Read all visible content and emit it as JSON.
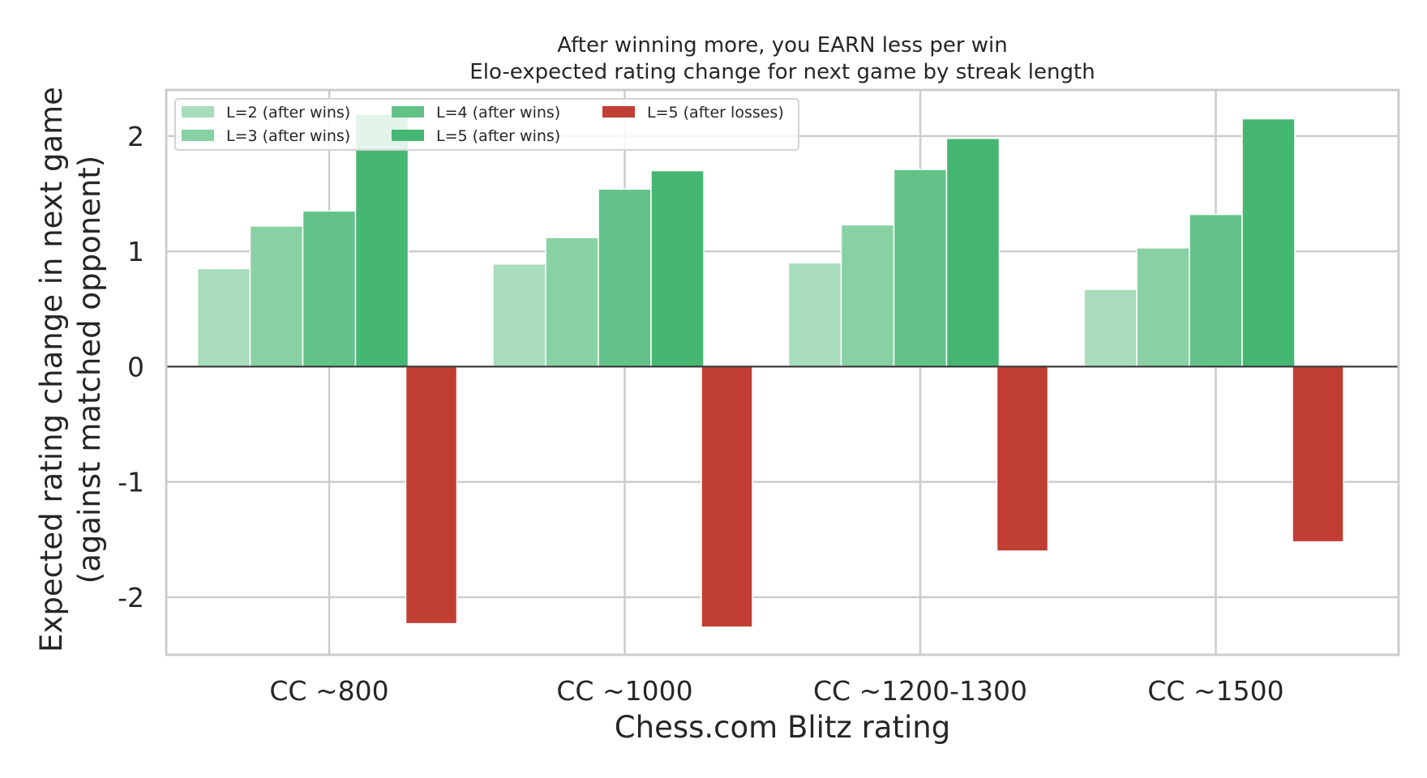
{
  "chart_data": {
    "type": "bar",
    "title": "After winning more, you EARN less per win",
    "subtitle": "Elo-expected rating change for next game by streak length",
    "xlabel": "Chess.com Blitz rating",
    "ylabel_line1": "Expected rating change in next game",
    "ylabel_line2": "(against matched opponent)",
    "categories": [
      "CC ~800",
      "CC ~1000",
      "CC ~1200-1300",
      "CC ~1500"
    ],
    "ylim": [
      -2.5,
      2.4
    ],
    "yticks": [
      -2,
      -1,
      0,
      1,
      2
    ],
    "ytick_labels": [
      "-2",
      "-1",
      "0",
      "1",
      "2"
    ],
    "grid": true,
    "legend_position": "top-left",
    "series": [
      {
        "name": "L=2 (after wins)",
        "color": "#a8dcbc",
        "values": [
          0.85,
          0.89,
          0.9,
          0.67
        ]
      },
      {
        "name": "L=3 (after wins)",
        "color": "#88d1a4",
        "values": [
          1.22,
          1.12,
          1.23,
          1.03
        ]
      },
      {
        "name": "L=4 (after wins)",
        "color": "#63c28a",
        "values": [
          1.35,
          1.54,
          1.71,
          1.32
        ]
      },
      {
        "name": "L=5 (after wins)",
        "color": "#46b673",
        "values": [
          2.19,
          1.7,
          1.98,
          2.15
        ]
      },
      {
        "name": "L=5 (after losses)",
        "color": "#c13e34",
        "values": [
          -2.23,
          -2.26,
          -1.6,
          -1.52
        ]
      }
    ]
  }
}
